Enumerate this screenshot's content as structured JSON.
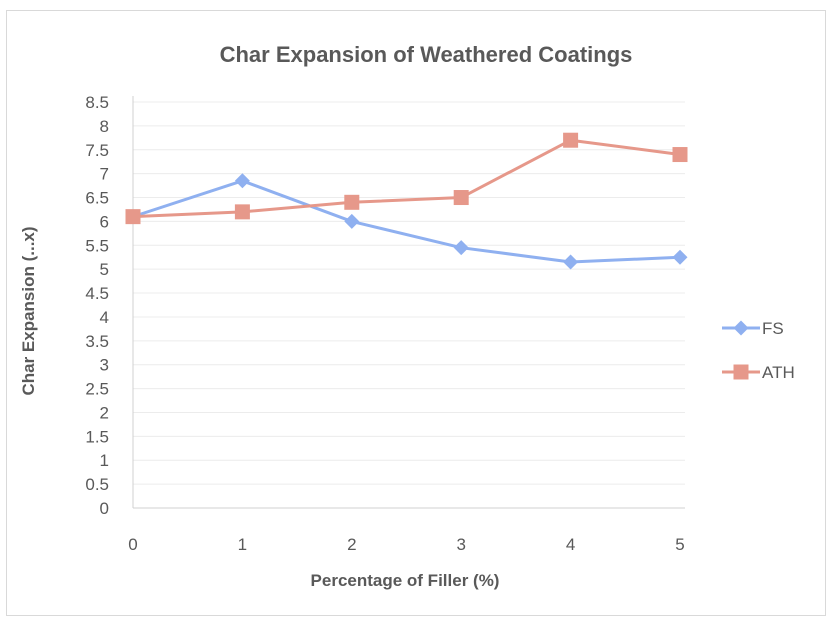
{
  "chart_data": {
    "type": "line",
    "title": "Char Expansion of Weathered Coatings",
    "xlabel": "Percentage of Filler (%)",
    "ylabel": "Char Expansion (...x)",
    "categories": [
      "0",
      "1",
      "2",
      "3",
      "4",
      "5"
    ],
    "y_ticks": [
      "0",
      "0.5",
      "1",
      "1.5",
      "2",
      "2.5",
      "3",
      "3.5",
      "4",
      "4.5",
      "5",
      "5.5",
      "6",
      "6.5",
      "7",
      "7.5",
      "8",
      "8.5"
    ],
    "ylim": [
      0,
      8.5
    ],
    "grid": true,
    "legend_position": "right",
    "series": [
      {
        "name": "FS",
        "values": [
          6.1,
          6.85,
          6.0,
          5.45,
          5.15,
          5.25
        ],
        "color": "#8fb0f0",
        "marker": "diamond"
      },
      {
        "name": "ATH",
        "values": [
          6.1,
          6.2,
          6.4,
          6.5,
          7.7,
          7.4
        ],
        "color": "#e6988a",
        "marker": "square"
      }
    ]
  }
}
